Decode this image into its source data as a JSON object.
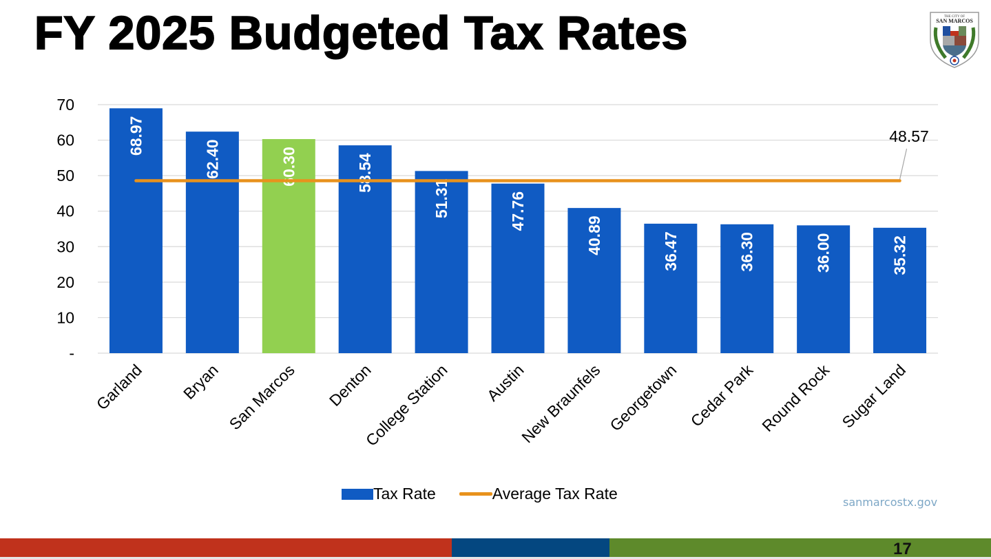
{
  "slide": {
    "title": "FY 2025 Budgeted Tax Rates",
    "website": "sanmarcostx.gov",
    "page_number": "17",
    "logo": {
      "label": "The City of San Marcos",
      "top_text": "THE CITY OF",
      "name_text": "SAN MARCOS",
      "icon": "city-seal-icon"
    }
  },
  "colors": {
    "bar": "#105bc3",
    "highlight_bar": "#92d050",
    "average_line": "#e8921d",
    "gridline": "#d9d9d9",
    "footer_red": "#c0321c",
    "footer_blue": "#044780",
    "footer_green": "#5e8a2b"
  },
  "chart_data": {
    "type": "bar",
    "title": "FY 2025 Budgeted Tax Rates",
    "xlabel": "",
    "ylabel": "",
    "ylim": [
      0,
      70
    ],
    "yticks": [
      0,
      10,
      20,
      30,
      40,
      50,
      60,
      70
    ],
    "ytick_labels": [
      "-",
      "10",
      "20",
      "30",
      "40",
      "50",
      "60",
      "70"
    ],
    "grid": true,
    "categories": [
      "Garland",
      "Bryan",
      "San Marcos",
      "Denton",
      "College Station",
      "Austin",
      "New Braunfels",
      "Georgetown",
      "Cedar Park",
      "Round Rock",
      "Sugar Land"
    ],
    "series": [
      {
        "name": "Tax Rate",
        "type": "bar",
        "values": [
          68.97,
          62.4,
          60.3,
          58.54,
          51.31,
          47.76,
          40.89,
          36.47,
          36.3,
          36.0,
          35.32
        ],
        "labels": [
          "68.97",
          "62.40",
          "60.30",
          "58.54",
          "51.31",
          "47.76",
          "40.89",
          "36.47",
          "36.30",
          "36.00",
          "35.32"
        ],
        "highlight_index": 2
      },
      {
        "name": "Average Tax Rate",
        "type": "line",
        "value": 48.57,
        "label": "48.57"
      }
    ],
    "legend": {
      "position": "bottom",
      "entries": [
        "Tax Rate",
        "Average Tax Rate"
      ]
    }
  }
}
